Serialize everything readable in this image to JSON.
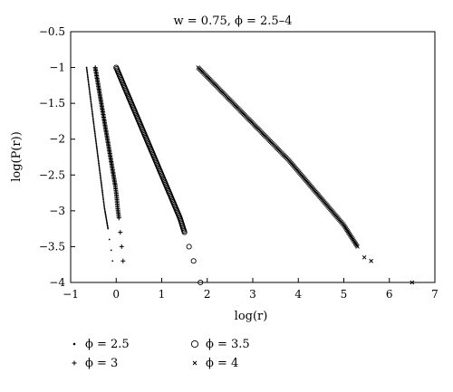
{
  "chart_data": {
    "type": "scatter",
    "title": "w = 0.75, ϕ = 2.5–4",
    "xlabel": "log(r)",
    "ylabel": "log(P(r))",
    "xlim": [
      -1,
      7
    ],
    "ylim": [
      -4,
      -0.5
    ],
    "xticks": [
      -1,
      0,
      1,
      2,
      3,
      4,
      5,
      6,
      7
    ],
    "yticks": [
      -0.5,
      -1,
      -1.5,
      -2,
      -2.5,
      -3,
      -3.5,
      -4
    ],
    "xtick_labels": [
      "−1",
      "0",
      "1",
      "2",
      "3",
      "4",
      "5",
      "6",
      "7"
    ],
    "ytick_labels": [
      "−0.5",
      "−1",
      "−1.5",
      "−2",
      "−2.5",
      "−3",
      "−3.5",
      "−4"
    ],
    "grid": false,
    "legend_position": "bottom",
    "series": [
      {
        "name": "ϕ = 2.5",
        "marker": "dot",
        "points": [
          [
            -0.65,
            -1.0
          ],
          [
            -0.61,
            -1.2
          ],
          [
            -0.57,
            -1.4
          ],
          [
            -0.53,
            -1.6
          ],
          [
            -0.49,
            -1.8
          ],
          [
            -0.45,
            -2.0
          ],
          [
            -0.41,
            -2.2
          ],
          [
            -0.37,
            -2.4
          ],
          [
            -0.33,
            -2.6
          ],
          [
            -0.29,
            -2.8
          ],
          [
            -0.26,
            -2.95
          ],
          [
            -0.22,
            -3.1
          ],
          [
            -0.18,
            -3.25
          ],
          [
            -0.15,
            -3.4
          ],
          [
            -0.11,
            -3.55
          ],
          [
            -0.08,
            -3.7
          ]
        ]
      },
      {
        "name": "ϕ = 3",
        "marker": "plus",
        "points": [
          [
            -0.46,
            -1.0
          ],
          [
            -0.42,
            -1.15
          ],
          [
            -0.38,
            -1.3
          ],
          [
            -0.34,
            -1.45
          ],
          [
            -0.3,
            -1.6
          ],
          [
            -0.26,
            -1.75
          ],
          [
            -0.22,
            -1.9
          ],
          [
            -0.18,
            -2.05
          ],
          [
            -0.14,
            -2.2
          ],
          [
            -0.1,
            -2.35
          ],
          [
            -0.06,
            -2.5
          ],
          [
            -0.02,
            -2.65
          ],
          [
            0.01,
            -2.8
          ],
          [
            0.03,
            -2.95
          ],
          [
            0.06,
            -3.1
          ],
          [
            0.09,
            -3.3
          ],
          [
            0.12,
            -3.5
          ],
          [
            0.15,
            -3.7
          ]
        ]
      },
      {
        "name": "ϕ = 3.5",
        "marker": "circle",
        "points": [
          [
            0.0,
            -1.0
          ],
          [
            0.1,
            -1.15
          ],
          [
            0.2,
            -1.3
          ],
          [
            0.3,
            -1.45
          ],
          [
            0.4,
            -1.6
          ],
          [
            0.5,
            -1.75
          ],
          [
            0.6,
            -1.9
          ],
          [
            0.7,
            -2.05
          ],
          [
            0.8,
            -2.2
          ],
          [
            0.9,
            -2.35
          ],
          [
            1.0,
            -2.5
          ],
          [
            1.1,
            -2.65
          ],
          [
            1.2,
            -2.8
          ],
          [
            1.3,
            -2.95
          ],
          [
            1.4,
            -3.1
          ],
          [
            1.5,
            -3.3
          ],
          [
            1.6,
            -3.5
          ],
          [
            1.7,
            -3.7
          ],
          [
            1.85,
            -4.0
          ]
        ]
      },
      {
        "name": "ϕ = 4",
        "marker": "x",
        "points": [
          [
            1.8,
            -1.0
          ],
          [
            2.0,
            -1.13
          ],
          [
            2.2,
            -1.26
          ],
          [
            2.4,
            -1.39
          ],
          [
            2.6,
            -1.52
          ],
          [
            2.8,
            -1.65
          ],
          [
            3.0,
            -1.78
          ],
          [
            3.2,
            -1.91
          ],
          [
            3.4,
            -2.04
          ],
          [
            3.6,
            -2.17
          ],
          [
            3.8,
            -2.3
          ],
          [
            4.0,
            -2.45
          ],
          [
            4.2,
            -2.6
          ],
          [
            4.4,
            -2.75
          ],
          [
            4.6,
            -2.9
          ],
          [
            4.8,
            -3.05
          ],
          [
            5.0,
            -3.2
          ],
          [
            5.15,
            -3.35
          ],
          [
            5.3,
            -3.5
          ],
          [
            5.45,
            -3.65
          ],
          [
            5.6,
            -3.7
          ],
          [
            6.5,
            -4.0
          ]
        ]
      }
    ]
  }
}
